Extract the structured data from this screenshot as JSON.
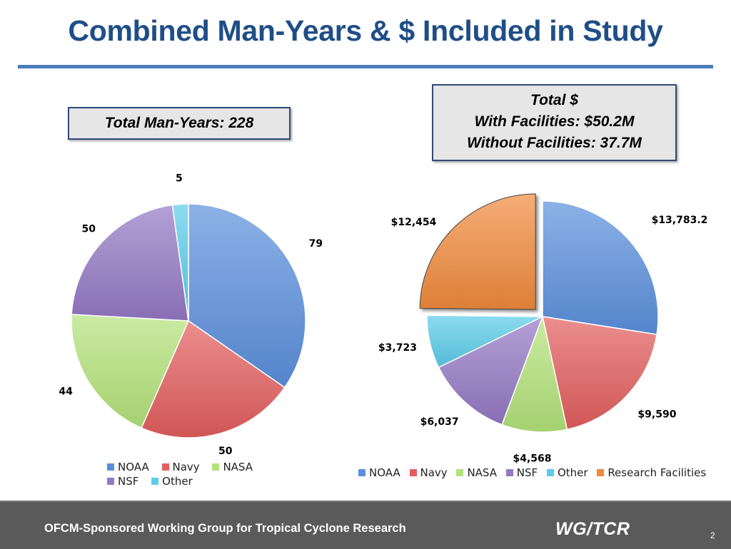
{
  "slide": {
    "title": "Combined Man-Years & $ Included in Study",
    "box_man_years": "Total Man-Years: 228",
    "box_dollars": {
      "line1": "Total $",
      "line2": "With Facilities: $50.2M",
      "line3": "Without Facilities: 37.7M"
    }
  },
  "footer": {
    "text": "OFCM-Sponsored Working Group for Tropical Cyclone Research",
    "logo": "WG/TCR",
    "page": "2"
  },
  "colors": {
    "NOAA": "#5b8fdd",
    "Navy": "#e35d5d",
    "NASA": "#b3e37a",
    "NSF": "#9479c4",
    "Other": "#5bcbea",
    "Research Facilities": "#f08a3c"
  },
  "chart_data": [
    {
      "type": "pie",
      "title": "",
      "categories": [
        "NOAA",
        "Navy",
        "NASA",
        "NSF",
        "Other"
      ],
      "values": [
        79,
        50,
        44,
        50,
        5
      ],
      "data_labels": [
        "79",
        "50",
        "44",
        "50",
        "5"
      ],
      "legend": [
        "NOAA",
        "Navy",
        "NASA",
        "NSF",
        "Other"
      ],
      "legend_position": "bottom"
    },
    {
      "type": "pie",
      "title": "",
      "categories": [
        "NOAA",
        "Navy",
        "NASA",
        "NSF",
        "Other",
        "Research Facilities"
      ],
      "values": [
        13783.2,
        9590,
        4568,
        6037,
        3723,
        12454
      ],
      "data_labels": [
        "$13,783.2",
        "$9,590",
        "$4,568",
        "$6,037",
        "$3,723",
        "$12,454"
      ],
      "exploded": [
        "Research Facilities"
      ],
      "legend": [
        "NOAA",
        "Navy",
        "NASA",
        "NSF",
        "Other",
        "Research Facilities"
      ],
      "legend_position": "bottom"
    }
  ]
}
